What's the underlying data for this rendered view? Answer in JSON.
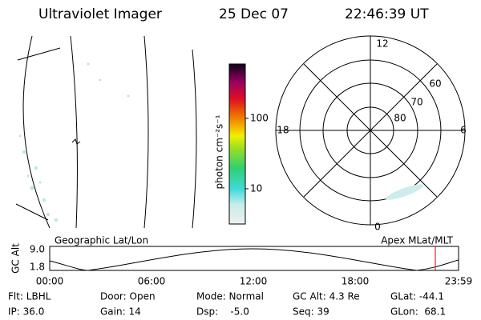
{
  "header": {
    "instrument": "Ultraviolet Imager",
    "date": "25 Dec 07",
    "time": "22:46:39 UT"
  },
  "colorbar": {
    "unit": "photon cm⁻²s⁻¹",
    "labels": [
      "100",
      "10"
    ]
  },
  "polar": {
    "mlt_labels": [
      "12",
      "18",
      "6",
      "0"
    ],
    "mlat_labels": [
      "60",
      "70",
      "80"
    ]
  },
  "altitude_plot": {
    "y_label": "GC Alt",
    "left_title": "Geographic Lat/Lon",
    "right_title": "Apex MLat/MLT",
    "y_labels": [
      "9.0",
      "1.8"
    ],
    "time_labels": [
      "00:00",
      "06:00",
      "12:00",
      "18:00",
      "23:59"
    ]
  },
  "status": [
    [
      "Flt: LBHL",
      "Door: Open",
      "Mode: Normal",
      "GC Alt: 4.3 Re",
      "GLat: -44.1"
    ],
    [
      "IP: 36.0",
      "Gain: 14",
      "Dsp:    -5.0",
      "Seq: 39",
      "GLon:  68.1"
    ]
  ]
}
